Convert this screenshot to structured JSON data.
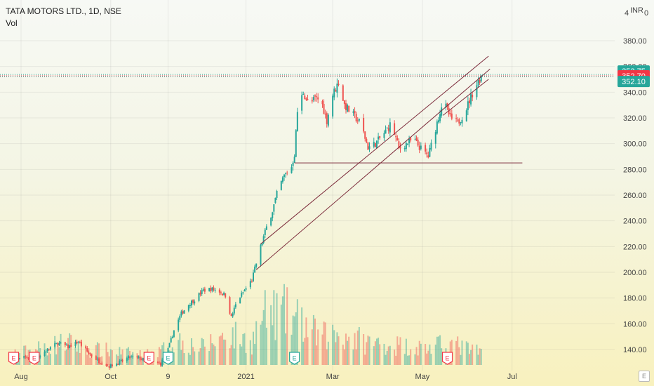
{
  "header": {
    "symbol": "TATA MOTORS LTD., 1D, NSE",
    "indicator": "Vol",
    "currency": "INR",
    "top_digits": "4",
    "top_zero": "0"
  },
  "colors": {
    "up": "#26a69a",
    "down": "#ef5350",
    "trendline": "#7b2a3a",
    "last_price_tag": "#f23645",
    "high_tag": "#26a69a",
    "low_tag": "#26a69a",
    "event": "#f23645",
    "event_up": "#26a69a"
  },
  "chart_data": {
    "type": "candlestick",
    "title": "TATA MOTORS LTD., 1D, NSE",
    "ylabel": "INR",
    "y_axis_ticks": [
      "380.00",
      "360.00",
      "340.00",
      "320.00",
      "300.00",
      "280.00",
      "260.00",
      "240.00",
      "220.00",
      "200.00",
      "180.00",
      "160.00",
      "140.00"
    ],
    "x_axis_ticks": [
      "Aug",
      "Oct",
      "9",
      "2021",
      "Mar",
      "May",
      "Jul"
    ],
    "price_tags": {
      "high": "353.75",
      "last": "352.70",
      "low": "352.10"
    },
    "ylim": [
      130,
      392
    ],
    "x_start": "2020-08-01",
    "x_end": "2021-07-25",
    "close_path": [
      [
        "2020-07-28",
        132
      ],
      [
        "2020-08-05",
        134
      ],
      [
        "2020-08-12",
        133
      ],
      [
        "2020-08-19",
        140
      ],
      [
        "2020-08-26",
        145
      ],
      [
        "2020-09-02",
        142
      ],
      [
        "2020-09-09",
        146
      ],
      [
        "2020-09-16",
        137
      ],
      [
        "2020-09-23",
        131
      ],
      [
        "2020-09-30",
        127
      ],
      [
        "2020-10-07",
        130
      ],
      [
        "2020-10-14",
        134
      ],
      [
        "2020-10-21",
        133
      ],
      [
        "2020-10-28",
        130
      ],
      [
        "2020-11-04",
        129
      ],
      [
        "2020-11-09",
        140
      ],
      [
        "2020-11-13",
        155
      ],
      [
        "2020-11-18",
        168
      ],
      [
        "2020-11-23",
        175
      ],
      [
        "2020-11-28",
        180
      ],
      [
        "2020-12-03",
        186
      ],
      [
        "2020-12-08",
        187
      ],
      [
        "2020-12-13",
        186
      ],
      [
        "2020-12-18",
        182
      ],
      [
        "2020-12-22",
        165
      ],
      [
        "2020-12-26",
        178
      ],
      [
        "2020-12-31",
        186
      ],
      [
        "2021-01-05",
        194
      ],
      [
        "2021-01-11",
        220
      ],
      [
        "2021-01-15",
        235
      ],
      [
        "2021-01-19",
        248
      ],
      [
        "2021-01-23",
        265
      ],
      [
        "2021-01-27",
        275
      ],
      [
        "2021-02-01",
        282
      ],
      [
        "2021-02-03",
        292
      ],
      [
        "2021-02-05",
        325
      ],
      [
        "2021-02-09",
        340
      ],
      [
        "2021-02-13",
        330
      ],
      [
        "2021-02-17",
        335
      ],
      [
        "2021-02-21",
        334
      ],
      [
        "2021-02-25",
        318
      ],
      [
        "2021-03-01",
        338
      ],
      [
        "2021-03-05",
        348
      ],
      [
        "2021-03-09",
        330
      ],
      [
        "2021-03-15",
        322
      ],
      [
        "2021-03-20",
        316
      ],
      [
        "2021-03-25",
        297
      ],
      [
        "2021-03-30",
        300
      ],
      [
        "2021-04-05",
        308
      ],
      [
        "2021-04-10",
        316
      ],
      [
        "2021-04-15",
        296
      ],
      [
        "2021-04-20",
        300
      ],
      [
        "2021-04-25",
        303
      ],
      [
        "2021-04-30",
        296
      ],
      [
        "2021-05-05",
        290
      ],
      [
        "2021-05-10",
        312
      ],
      [
        "2021-05-15",
        334
      ],
      [
        "2021-05-20",
        320
      ],
      [
        "2021-05-25",
        316
      ],
      [
        "2021-05-30",
        325
      ],
      [
        "2021-06-05",
        342
      ],
      [
        "2021-06-10",
        352.7
      ]
    ],
    "volume_profile": [
      [
        "2020-08-01",
        22
      ],
      [
        "2020-08-15",
        30
      ],
      [
        "2020-09-01",
        40
      ],
      [
        "2020-09-15",
        28
      ],
      [
        "2020-10-01",
        25
      ],
      [
        "2020-10-15",
        20
      ],
      [
        "2020-11-01",
        18
      ],
      [
        "2020-11-15",
        45
      ],
      [
        "2020-12-01",
        30
      ],
      [
        "2020-12-20",
        55
      ],
      [
        "2021-01-05",
        40
      ],
      [
        "2021-01-12",
        85
      ],
      [
        "2021-01-25",
        95
      ],
      [
        "2021-02-05",
        80
      ],
      [
        "2021-02-20",
        50
      ],
      [
        "2021-03-05",
        55
      ],
      [
        "2021-03-25",
        40
      ],
      [
        "2021-04-15",
        35
      ],
      [
        "2021-05-05",
        30
      ],
      [
        "2021-05-20",
        38
      ],
      [
        "2021-06-05",
        25
      ],
      [
        "2021-06-12",
        20
      ]
    ],
    "trendlines": [
      {
        "from": [
          "2021-01-11",
          222
        ],
        "to": [
          "2021-06-15",
          368
        ]
      },
      {
        "from": [
          "2021-01-08",
          202
        ],
        "to": [
          "2021-06-16",
          358
        ]
      },
      {
        "from": [
          "2021-05-15",
          322
        ],
        "to": [
          "2021-06-15",
          350
        ]
      },
      {
        "from": [
          "2021-02-03",
          285
        ],
        "to": [
          "2021-07-08",
          285
        ]
      }
    ],
    "events": [
      {
        "date": "2020-07-27",
        "label": "E",
        "kind": "down"
      },
      {
        "date": "2020-08-10",
        "label": "E",
        "kind": "down"
      },
      {
        "date": "2020-10-27",
        "label": "E",
        "kind": "down"
      },
      {
        "date": "2020-11-09",
        "label": "E",
        "kind": "up"
      },
      {
        "date": "2021-02-03",
        "label": "E",
        "kind": "up"
      },
      {
        "date": "2021-05-18",
        "label": "E",
        "kind": "down"
      }
    ]
  }
}
